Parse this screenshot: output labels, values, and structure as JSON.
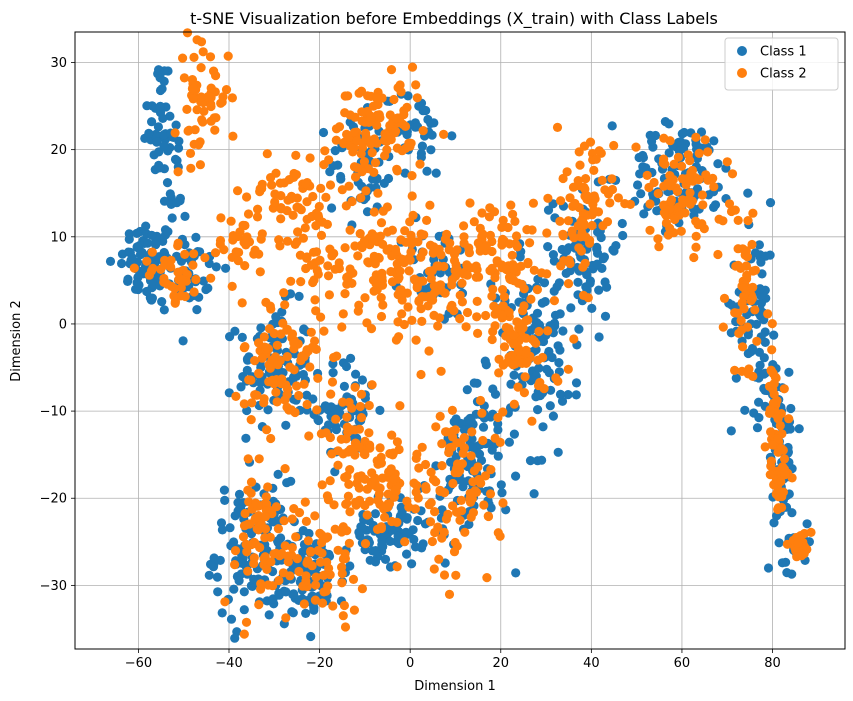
{
  "chart_data": {
    "type": "scatter",
    "title": "t-SNE Visualization before Embeddings (X_train) with Class Labels",
    "xlabel": "Dimension 1",
    "ylabel": "Dimension 2",
    "xlim": [
      -74,
      96
    ],
    "ylim": [
      -37.3,
      33.5
    ],
    "xticks": [
      -60,
      -40,
      -20,
      0,
      20,
      40,
      60,
      80
    ],
    "yticks": [
      -30,
      -20,
      -10,
      0,
      10,
      20,
      30
    ],
    "grid": true,
    "legend_position": "upper-right",
    "series": [
      {
        "name": "Class 1",
        "color": "#1f77b4",
        "clusters": [
          {
            "cx": -58,
            "cy": 7,
            "sx": 3,
            "sy": 2.5,
            "n": 70,
            "rot": 0
          },
          {
            "cx": -50,
            "cy": 6,
            "sx": 4,
            "sy": 2.5,
            "n": 50,
            "rot": 0
          },
          {
            "cx": -54,
            "cy": 21,
            "sx": 2,
            "sy": 5.5,
            "n": 60,
            "rot": 0.3
          },
          {
            "cx": -30,
            "cy": -5,
            "sx": 4,
            "sy": 3.5,
            "n": 90,
            "rot": 0
          },
          {
            "cx": -14,
            "cy": -10,
            "sx": 3.5,
            "sy": 3,
            "n": 60,
            "rot": 0
          },
          {
            "cx": -35,
            "cy": -26,
            "sx": 4,
            "sy": 4,
            "n": 120,
            "rot": 0
          },
          {
            "cx": -22,
            "cy": -29,
            "sx": 4,
            "sy": 2.5,
            "n": 90,
            "rot": 0
          },
          {
            "cx": -5,
            "cy": -24,
            "sx": 4,
            "sy": 2,
            "n": 70,
            "rot": 0
          },
          {
            "cx": 14,
            "cy": -16,
            "sx": 5,
            "sy": 4,
            "n": 110,
            "rot": 0.8
          },
          {
            "cx": 28,
            "cy": -3,
            "sx": 4,
            "sy": 5,
            "n": 110,
            "rot": 0.6
          },
          {
            "cx": 38,
            "cy": 9,
            "sx": 4,
            "sy": 4,
            "n": 80,
            "rot": 0
          },
          {
            "cx": -10,
            "cy": 18,
            "sx": 4,
            "sy": 3,
            "n": 50,
            "rot": 0
          },
          {
            "cx": 0,
            "cy": 22,
            "sx": 4,
            "sy": 2.5,
            "n": 40,
            "rot": 0
          },
          {
            "cx": 6,
            "cy": 6,
            "sx": 4,
            "sy": 3,
            "n": 40,
            "rot": 0
          },
          {
            "cx": 60,
            "cy": 17,
            "sx": 6,
            "sy": 3,
            "n": 100,
            "rot": 0
          },
          {
            "cx": 76,
            "cy": 2,
            "sx": 2.5,
            "sy": 6,
            "n": 70,
            "rot": 0
          },
          {
            "cx": 82,
            "cy": -15,
            "sx": 1.3,
            "sy": 6,
            "n": 70,
            "rot": 0.1
          },
          {
            "cx": 86,
            "cy": -25,
            "sx": 1.5,
            "sy": 0.8,
            "n": 20,
            "rot": 0
          }
        ]
      },
      {
        "name": "Class 2",
        "color": "#ff7f0e",
        "clusters": [
          {
            "cx": -46,
            "cy": 26,
            "sx": 3,
            "sy": 3.5,
            "n": 60,
            "rot": 0
          },
          {
            "cx": -52,
            "cy": 5.5,
            "sx": 4,
            "sy": 1.5,
            "n": 40,
            "rot": 0
          },
          {
            "cx": -38,
            "cy": 9,
            "sx": 3,
            "sy": 2,
            "n": 30,
            "rot": 0
          },
          {
            "cx": -26,
            "cy": 15,
            "sx": 5,
            "sy": 3,
            "n": 60,
            "rot": 0
          },
          {
            "cx": -20,
            "cy": 8,
            "sx": 4,
            "sy": 3,
            "n": 40,
            "rot": 0
          },
          {
            "cx": -7,
            "cy": 22,
            "sx": 5,
            "sy": 3,
            "n": 110,
            "rot": 0
          },
          {
            "cx": -6,
            "cy": 8,
            "sx": 5,
            "sy": 4,
            "n": 100,
            "rot": 0
          },
          {
            "cx": 4,
            "cy": 5,
            "sx": 4,
            "sy": 3,
            "n": 60,
            "rot": 0
          },
          {
            "cx": 18,
            "cy": 8,
            "sx": 5,
            "sy": 3.5,
            "n": 90,
            "rot": 0
          },
          {
            "cx": -28,
            "cy": -5,
            "sx": 4.5,
            "sy": 4,
            "n": 100,
            "rot": 0
          },
          {
            "cx": -12,
            "cy": -14,
            "sx": 4,
            "sy": 4,
            "n": 70,
            "rot": 0
          },
          {
            "cx": -34,
            "cy": -25,
            "sx": 4,
            "sy": 4,
            "n": 60,
            "rot": 0
          },
          {
            "cx": -20,
            "cy": -27,
            "sx": 5,
            "sy": 3,
            "n": 70,
            "rot": 0
          },
          {
            "cx": -5,
            "cy": -19,
            "sx": 4,
            "sy": 3,
            "n": 60,
            "rot": 0
          },
          {
            "cx": 10,
            "cy": -18,
            "sx": 5,
            "sy": 5,
            "n": 100,
            "rot": 0.8
          },
          {
            "cx": 24,
            "cy": -2,
            "sx": 4,
            "sy": 5,
            "n": 90,
            "rot": 0.6
          },
          {
            "cx": 38,
            "cy": 13,
            "sx": 3.5,
            "sy": 4,
            "n": 80,
            "rot": 0
          },
          {
            "cx": 60,
            "cy": 15,
            "sx": 5,
            "sy": 3,
            "n": 90,
            "rot": 0
          },
          {
            "cx": 74,
            "cy": 4,
            "sx": 2.2,
            "sy": 5,
            "n": 50,
            "rot": 0
          },
          {
            "cx": 81,
            "cy": -14,
            "sx": 1.2,
            "sy": 5.5,
            "n": 70,
            "rot": 0.1
          },
          {
            "cx": 86,
            "cy": -25.5,
            "sx": 1.3,
            "sy": 0.7,
            "n": 25,
            "rot": 0
          }
        ]
      }
    ]
  }
}
